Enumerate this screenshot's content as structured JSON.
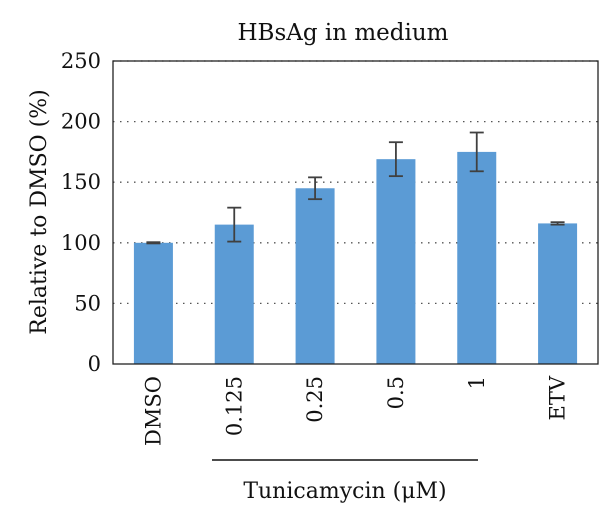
{
  "chart_data": {
    "type": "bar",
    "title": "HBsAg in medium",
    "xlabel": "",
    "ylabel": "Relative to DMSO (%)",
    "categories": [
      "DMSO",
      "0.125",
      "0.25",
      "0.5",
      "1",
      "ETV"
    ],
    "values": [
      100,
      115,
      145,
      169,
      175,
      116
    ],
    "errors": [
      0.5,
      14,
      9,
      14,
      16,
      1
    ],
    "ylim": [
      0,
      250
    ],
    "yticks": [
      0,
      50,
      100,
      150,
      200,
      250
    ],
    "grid": "horizontal dotted",
    "bar_color": "#5b9bd5",
    "error_color": "#404040",
    "group_label": "Tunicamycin (μM)",
    "group_categories": [
      "0.125",
      "0.25",
      "0.5",
      "1"
    ]
  }
}
